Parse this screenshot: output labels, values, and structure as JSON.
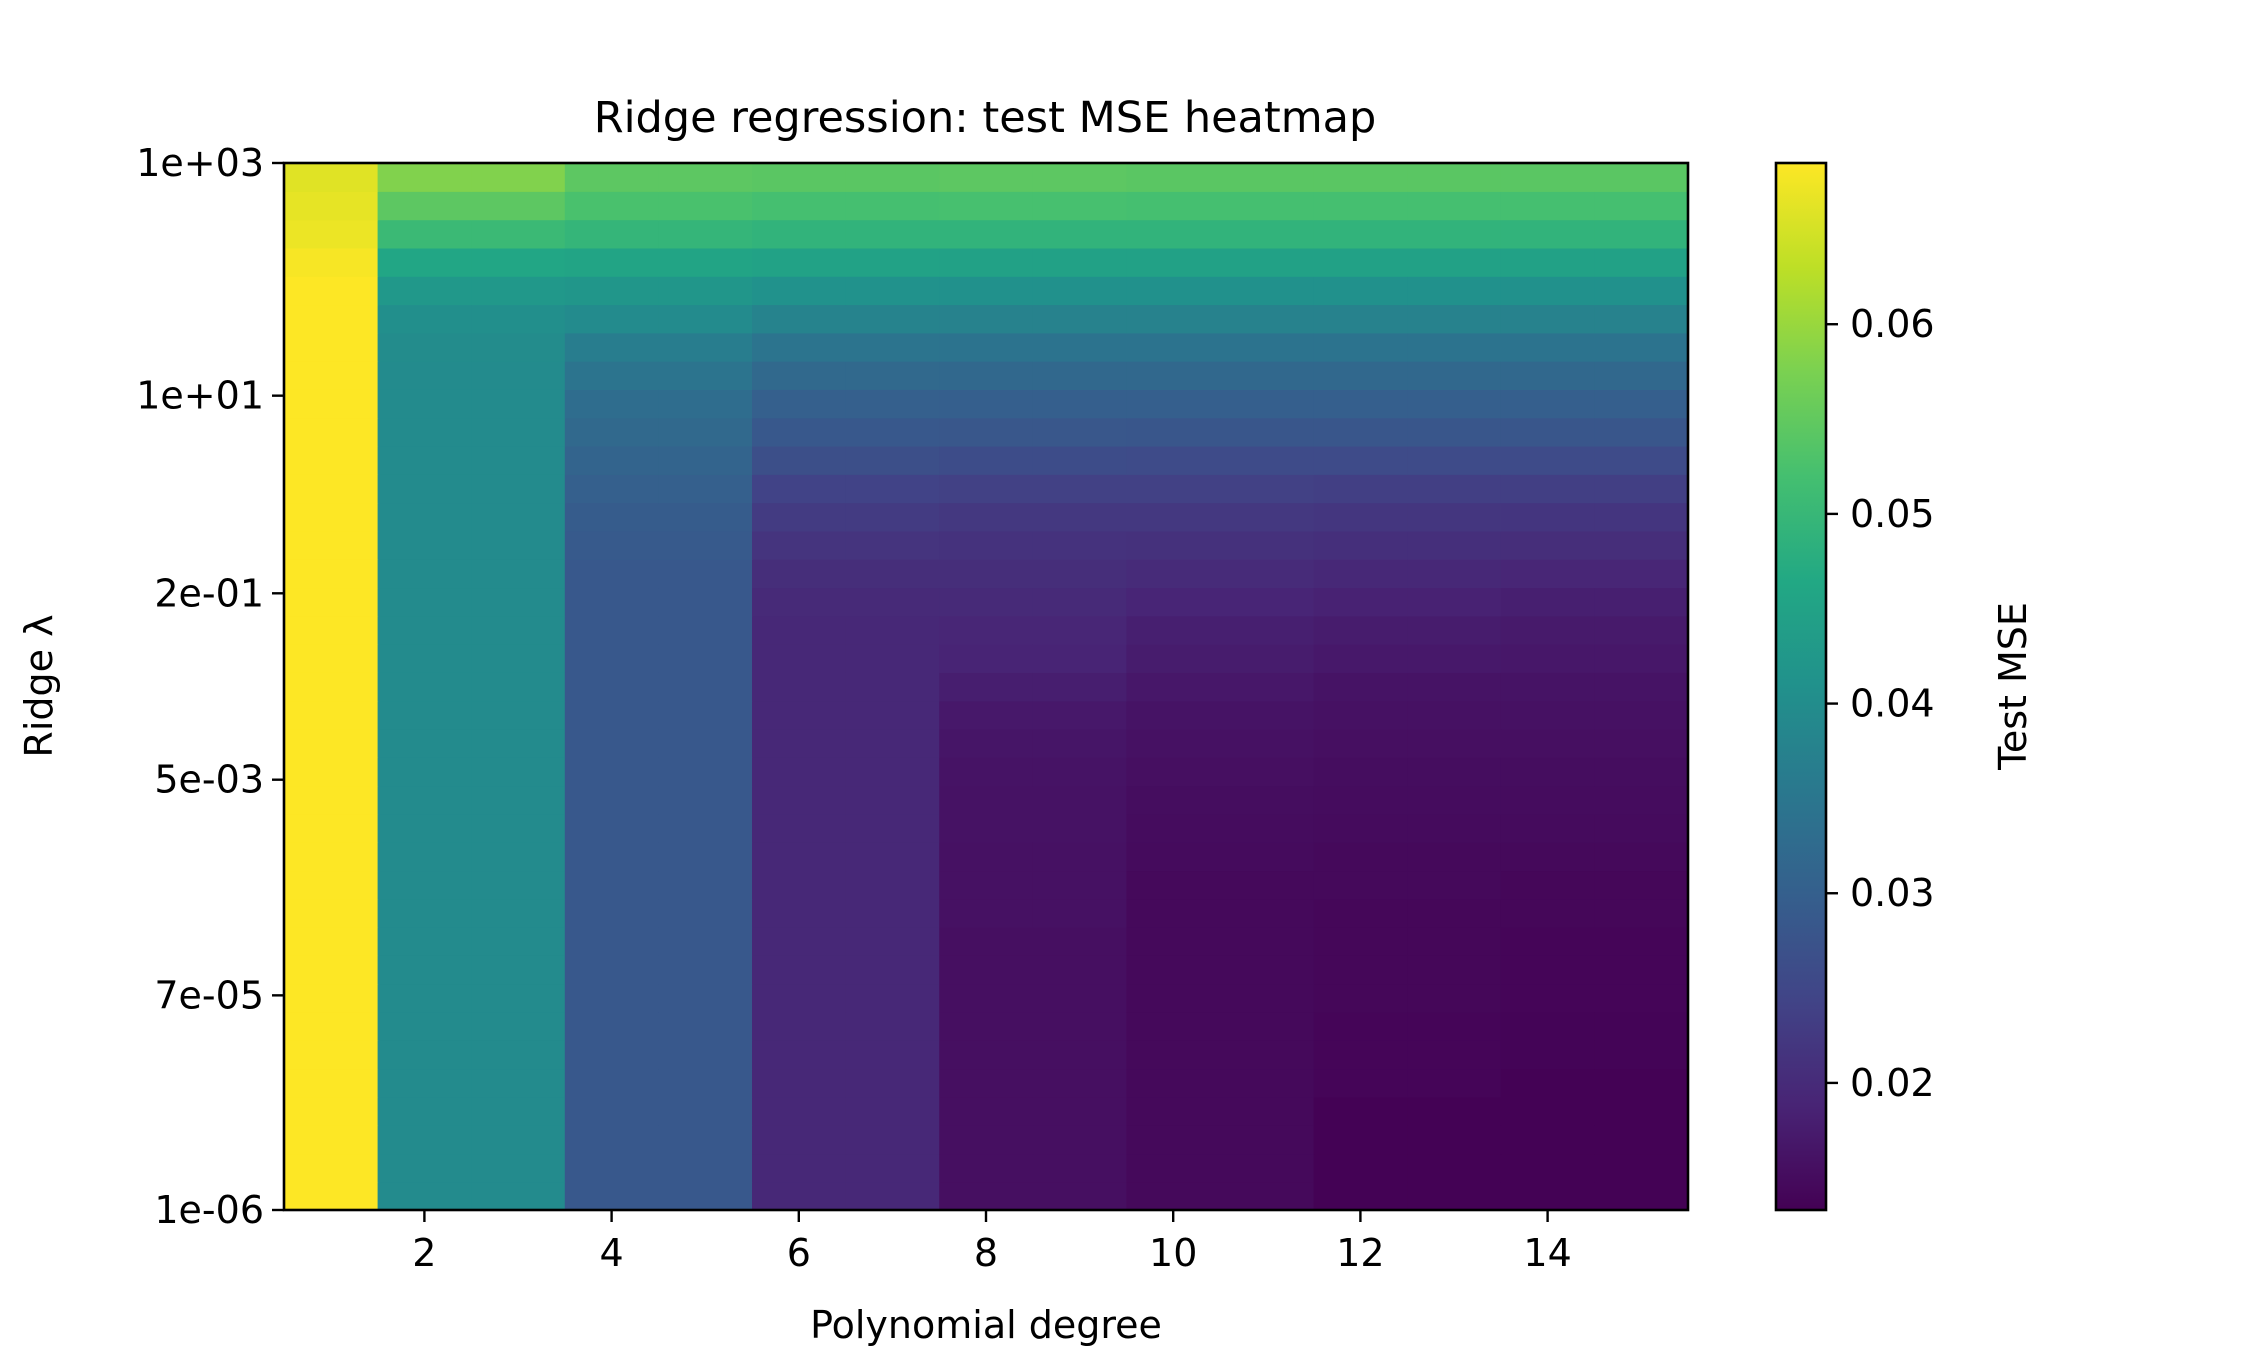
{
  "chart_data": {
    "type": "heatmap",
    "title": "Ridge regression: test MSE heatmap",
    "xlabel": "Polynomial degree",
    "ylabel": "Ridge λ",
    "x_categories": [
      1,
      2,
      3,
      4,
      5,
      6,
      7,
      8,
      9,
      10,
      11,
      12,
      13,
      14,
      15
    ],
    "x_ticks": [
      2,
      4,
      6,
      8,
      10,
      12,
      14
    ],
    "y_scale": "log",
    "y_range": [
      1e-06,
      1000
    ],
    "y_ticks": [
      {
        "value": 1e-06,
        "label": "1e-06"
      },
      {
        "value": 7e-05,
        "label": "7e-05"
      },
      {
        "value": 0.005,
        "label": "5e-03"
      },
      {
        "value": 0.2,
        "label": "2e-01"
      },
      {
        "value": 10,
        "label": "1e+01"
      },
      {
        "value": 1000,
        "label": "1e+03"
      }
    ],
    "y_values": [
      1e-06,
      1.78e-06,
      3.16e-06,
      5.62e-06,
      1e-05,
      1.78e-05,
      3.16e-05,
      5.62e-05,
      0.0001,
      0.000178,
      0.000316,
      0.000562,
      0.001,
      0.00178,
      0.00316,
      0.00562,
      0.01,
      0.0178,
      0.0316,
      0.0562,
      0.1,
      0.178,
      0.316,
      0.562,
      1,
      1.78,
      3.16,
      5.62,
      10,
      17.8,
      31.6,
      56.2,
      100,
      178,
      316,
      562,
      1000
    ],
    "z_values": [
      [
        0.0685,
        0.0395,
        0.0395,
        0.0285,
        0.0285,
        0.0195,
        0.0195,
        0.0155,
        0.0155,
        0.0145,
        0.0145,
        0.0135,
        0.0135,
        0.0135,
        0.0135
      ],
      [
        0.0685,
        0.0395,
        0.0395,
        0.0285,
        0.0285,
        0.0195,
        0.0195,
        0.0155,
        0.0155,
        0.0145,
        0.0145,
        0.0135,
        0.0135,
        0.0135,
        0.0135
      ],
      [
        0.0685,
        0.0395,
        0.0395,
        0.0285,
        0.0285,
        0.0195,
        0.0195,
        0.0155,
        0.0155,
        0.0145,
        0.0145,
        0.0135,
        0.0135,
        0.0135,
        0.0135
      ],
      [
        0.0685,
        0.0395,
        0.0395,
        0.0285,
        0.0285,
        0.0195,
        0.0195,
        0.0155,
        0.0155,
        0.0145,
        0.0145,
        0.0135,
        0.0135,
        0.0135,
        0.0135
      ],
      [
        0.0685,
        0.0395,
        0.0395,
        0.0285,
        0.0285,
        0.0195,
        0.0195,
        0.0155,
        0.0155,
        0.0145,
        0.0145,
        0.014,
        0.014,
        0.0135,
        0.0135
      ],
      [
        0.0685,
        0.0395,
        0.0395,
        0.0285,
        0.0285,
        0.0195,
        0.0195,
        0.0155,
        0.0155,
        0.0145,
        0.0145,
        0.014,
        0.014,
        0.0138,
        0.0138
      ],
      [
        0.0685,
        0.0395,
        0.0395,
        0.0285,
        0.0285,
        0.0195,
        0.0195,
        0.0155,
        0.0155,
        0.0145,
        0.0145,
        0.014,
        0.014,
        0.0138,
        0.0138
      ],
      [
        0.0685,
        0.0395,
        0.0395,
        0.0285,
        0.0285,
        0.0195,
        0.0195,
        0.0155,
        0.0155,
        0.0145,
        0.0145,
        0.0142,
        0.0142,
        0.014,
        0.014
      ],
      [
        0.0685,
        0.0395,
        0.0395,
        0.0285,
        0.0285,
        0.0195,
        0.0195,
        0.0155,
        0.0155,
        0.0145,
        0.0145,
        0.0142,
        0.0142,
        0.014,
        0.014
      ],
      [
        0.0685,
        0.0395,
        0.0395,
        0.0285,
        0.0285,
        0.0195,
        0.0195,
        0.0155,
        0.0155,
        0.0145,
        0.0145,
        0.0142,
        0.0142,
        0.014,
        0.014
      ],
      [
        0.0685,
        0.0395,
        0.0395,
        0.0285,
        0.0285,
        0.0195,
        0.0195,
        0.0158,
        0.0158,
        0.0145,
        0.0145,
        0.0142,
        0.0142,
        0.0142,
        0.0142
      ],
      [
        0.0685,
        0.0395,
        0.0395,
        0.0285,
        0.0285,
        0.0195,
        0.0195,
        0.0158,
        0.0158,
        0.0145,
        0.0145,
        0.0145,
        0.0145,
        0.0142,
        0.0142
      ],
      [
        0.0685,
        0.0395,
        0.0395,
        0.0285,
        0.0285,
        0.0195,
        0.0195,
        0.0158,
        0.0158,
        0.0148,
        0.0148,
        0.0145,
        0.0145,
        0.0145,
        0.0145
      ],
      [
        0.0685,
        0.0395,
        0.0395,
        0.0285,
        0.0285,
        0.0195,
        0.0195,
        0.016,
        0.016,
        0.015,
        0.015,
        0.0148,
        0.0148,
        0.0148,
        0.0148
      ],
      [
        0.0685,
        0.0395,
        0.0395,
        0.0285,
        0.0285,
        0.0195,
        0.0195,
        0.016,
        0.016,
        0.0152,
        0.0152,
        0.015,
        0.015,
        0.015,
        0.015
      ],
      [
        0.0685,
        0.0395,
        0.0395,
        0.0285,
        0.0285,
        0.0195,
        0.0195,
        0.0162,
        0.0162,
        0.0155,
        0.0155,
        0.0152,
        0.0152,
        0.0152,
        0.0152
      ],
      [
        0.0685,
        0.0395,
        0.0395,
        0.0285,
        0.0285,
        0.0195,
        0.0195,
        0.0165,
        0.0165,
        0.0158,
        0.0158,
        0.0155,
        0.0155,
        0.0155,
        0.0155
      ],
      [
        0.0685,
        0.0395,
        0.0395,
        0.0285,
        0.0285,
        0.0195,
        0.0195,
        0.017,
        0.017,
        0.0162,
        0.0162,
        0.0158,
        0.0158,
        0.0158,
        0.0158
      ],
      [
        0.0685,
        0.0395,
        0.0395,
        0.0285,
        0.0285,
        0.0195,
        0.0195,
        0.0178,
        0.0178,
        0.0168,
        0.0168,
        0.0162,
        0.0162,
        0.0162,
        0.0162
      ],
      [
        0.0685,
        0.0395,
        0.0395,
        0.0285,
        0.0285,
        0.0195,
        0.0195,
        0.0188,
        0.0188,
        0.0175,
        0.0175,
        0.017,
        0.017,
        0.0168,
        0.0168
      ],
      [
        0.0685,
        0.0395,
        0.0395,
        0.0285,
        0.0285,
        0.0195,
        0.0195,
        0.0192,
        0.0192,
        0.018,
        0.018,
        0.0175,
        0.0175,
        0.0172,
        0.0172
      ],
      [
        0.0685,
        0.0395,
        0.0395,
        0.0285,
        0.0285,
        0.0198,
        0.0198,
        0.0198,
        0.0198,
        0.019,
        0.019,
        0.0185,
        0.0185,
        0.018,
        0.018
      ],
      [
        0.0685,
        0.0395,
        0.0395,
        0.0285,
        0.0285,
        0.0205,
        0.0205,
        0.0205,
        0.0205,
        0.02,
        0.02,
        0.0195,
        0.0195,
        0.0192,
        0.0192
      ],
      [
        0.0685,
        0.0395,
        0.0395,
        0.0288,
        0.0288,
        0.0215,
        0.0215,
        0.0212,
        0.0212,
        0.021,
        0.021,
        0.0208,
        0.0208,
        0.0205,
        0.0205
      ],
      [
        0.0685,
        0.0395,
        0.0395,
        0.0292,
        0.0292,
        0.0228,
        0.0228,
        0.0222,
        0.0222,
        0.0222,
        0.0222,
        0.022,
        0.022,
        0.0218,
        0.0218
      ],
      [
        0.0685,
        0.0395,
        0.0395,
        0.03,
        0.03,
        0.0242,
        0.0242,
        0.0238,
        0.0238,
        0.0238,
        0.0238,
        0.0235,
        0.0235,
        0.0235,
        0.0235
      ],
      [
        0.0685,
        0.0395,
        0.0395,
        0.031,
        0.031,
        0.0265,
        0.0265,
        0.026,
        0.026,
        0.0258,
        0.0258,
        0.0258,
        0.0258,
        0.0258,
        0.0258
      ],
      [
        0.0685,
        0.0395,
        0.0395,
        0.032,
        0.032,
        0.0285,
        0.0285,
        0.0282,
        0.0282,
        0.028,
        0.028,
        0.028,
        0.028,
        0.028,
        0.028
      ],
      [
        0.0685,
        0.0395,
        0.0395,
        0.033,
        0.033,
        0.03,
        0.03,
        0.0298,
        0.0298,
        0.0298,
        0.0298,
        0.0298,
        0.0298,
        0.0298,
        0.0298
      ],
      [
        0.0685,
        0.0395,
        0.0395,
        0.0345,
        0.0345,
        0.032,
        0.032,
        0.0318,
        0.0318,
        0.0318,
        0.0318,
        0.0318,
        0.0318,
        0.0318,
        0.0318
      ],
      [
        0.0685,
        0.0398,
        0.0398,
        0.0365,
        0.0365,
        0.0345,
        0.0345,
        0.0342,
        0.0342,
        0.0342,
        0.0342,
        0.0342,
        0.0342,
        0.0342,
        0.0342
      ],
      [
        0.0685,
        0.0405,
        0.0405,
        0.0395,
        0.0395,
        0.0378,
        0.0378,
        0.0375,
        0.0375,
        0.0375,
        0.0375,
        0.0375,
        0.0375,
        0.0375,
        0.0375
      ],
      [
        0.0685,
        0.0425,
        0.0425,
        0.0422,
        0.0422,
        0.0412,
        0.0412,
        0.041,
        0.041,
        0.041,
        0.041,
        0.041,
        0.041,
        0.041,
        0.041
      ],
      [
        0.068,
        0.046,
        0.046,
        0.0455,
        0.0455,
        0.045,
        0.045,
        0.0448,
        0.0448,
        0.0448,
        0.0448,
        0.0448,
        0.0448,
        0.0448,
        0.0448
      ],
      [
        0.067,
        0.0505,
        0.0505,
        0.0495,
        0.0495,
        0.049,
        0.049,
        0.049,
        0.049,
        0.049,
        0.049,
        0.049,
        0.049,
        0.049,
        0.049
      ],
      [
        0.0665,
        0.0545,
        0.0545,
        0.0525,
        0.0525,
        0.052,
        0.052,
        0.0522,
        0.0522,
        0.052,
        0.052,
        0.052,
        0.052,
        0.052,
        0.052
      ],
      [
        0.066,
        0.058,
        0.058,
        0.0545,
        0.0545,
        0.0542,
        0.0542,
        0.0545,
        0.0545,
        0.0542,
        0.0542,
        0.0542,
        0.0542,
        0.0542,
        0.0542
      ]
    ],
    "colormap": "viridis",
    "colorbar": {
      "label": "Test MSE",
      "range": [
        0.0133,
        0.0685
      ],
      "ticks": [
        {
          "value": 0.02,
          "label": "0.02"
        },
        {
          "value": 0.03,
          "label": "0.03"
        },
        {
          "value": 0.04,
          "label": "0.04"
        },
        {
          "value": 0.05,
          "label": "0.05"
        },
        {
          "value": 0.06,
          "label": "0.06"
        }
      ]
    }
  }
}
